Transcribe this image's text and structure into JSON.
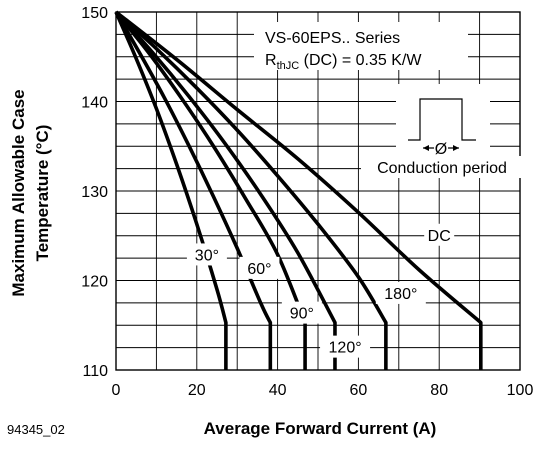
{
  "chart_data": {
    "type": "line",
    "title_lines": [
      "VS-60EPS.. Series"
    ],
    "rth_prefix": "R",
    "rth_sub": "thJC",
    "rth_suffix": " (DC) = 0.35 K/W",
    "xlabel": "Average Forward Current (A)",
    "ylabel_lines": [
      "Maximum Allowable Case",
      "Temperature (°C)"
    ],
    "figure_code": "94345_02",
    "xlim": [
      0,
      100
    ],
    "ylim": [
      110,
      150
    ],
    "x_ticks": [
      0,
      20,
      40,
      60,
      80,
      100
    ],
    "y_ticks": [
      110,
      120,
      130,
      140,
      150
    ],
    "grid": true,
    "inset": {
      "symbol": "Ø",
      "caption": "Conduction period"
    },
    "series": [
      {
        "name": "30°",
        "x": [
          0,
          5,
          10,
          15,
          20,
          25,
          27.2,
          27.2
        ],
        "y": [
          150,
          144.8,
          139.2,
          133,
          126.3,
          119,
          115.3,
          110
        ]
      },
      {
        "name": "60°",
        "x": [
          0,
          6,
          12,
          18,
          24,
          30,
          36,
          38.2,
          38.2
        ],
        "y": [
          150,
          145.3,
          140.4,
          135.1,
          129.5,
          123.6,
          117.3,
          115.3,
          110
        ]
      },
      {
        "name": "90°",
        "x": [
          0,
          8,
          16,
          24,
          32,
          40,
          46.8,
          46.8
        ],
        "y": [
          150,
          145.5,
          140.5,
          135.1,
          129.2,
          122.9,
          115.3,
          110
        ]
      },
      {
        "name": "120°",
        "x": [
          0,
          9,
          18,
          27,
          36,
          45,
          54.2,
          54.2
        ],
        "y": [
          150,
          145.5,
          140.6,
          135.3,
          129.5,
          123.1,
          115.3,
          110
        ]
      },
      {
        "name": "180°",
        "x": [
          0,
          10,
          20,
          30,
          40,
          50,
          60,
          66.8,
          66.8
        ],
        "y": [
          150,
          145.9,
          141.5,
          136.8,
          131.7,
          126.3,
          120.4,
          115.3,
          110
        ]
      },
      {
        "name": "DC",
        "x": [
          0,
          15,
          30,
          45,
          60,
          75,
          90.3,
          90.3
        ],
        "y": [
          150,
          144.7,
          139.1,
          133.6,
          127.6,
          121.2,
          115.3,
          110
        ]
      }
    ]
  }
}
